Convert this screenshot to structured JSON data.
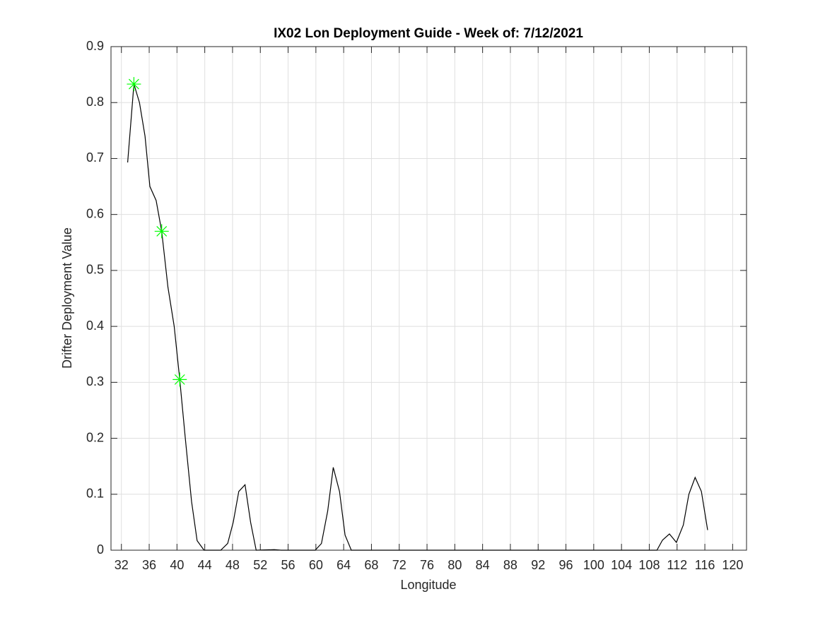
{
  "chart_data": {
    "type": "line",
    "title": "IX02 Lon Deployment Guide - Week of: 7/12/2021",
    "x_label": "Longitude",
    "y_label": "Drifter Deployment Value",
    "x": [
      32.9,
      33.8,
      34.6,
      35.4,
      36.1,
      37.0,
      37.8,
      38.7,
      39.6,
      40.4,
      41.2,
      42.1,
      42.9,
      43.9,
      46.3,
      47.3,
      48.1,
      48.9,
      49.8,
      50.6,
      51.4,
      54.0,
      55.0,
      59.9,
      60.8,
      61.7,
      62.5,
      63.4,
      64.2,
      65.1,
      109.1,
      109.9,
      110.9,
      111.9,
      112.9,
      113.7,
      114.6,
      115.5,
      116.4
    ],
    "values": [
      0.693,
      0.833,
      0.8,
      0.74,
      0.65,
      0.625,
      0.57,
      0.47,
      0.4,
      0.305,
      0.2,
      0.087,
      0.017,
      0,
      0,
      0.012,
      0.05,
      0.105,
      0.117,
      0.05,
      0,
      0.001,
      0,
      0,
      0.012,
      0.07,
      0.148,
      0.105,
      0.027,
      0,
      0,
      0.018,
      0.029,
      0.014,
      0.045,
      0.1,
      0.13,
      0.105,
      0.036
    ],
    "color": "#000000",
    "markers": {
      "x": [
        33.8,
        37.8,
        40.4
      ],
      "values": [
        0.833,
        0.57,
        0.305
      ],
      "color": "#00ff00"
    },
    "xlim": [
      30.5,
      122
    ],
    "ylim": [
      0,
      0.9
    ],
    "xticks": [
      32,
      36,
      40,
      44,
      48,
      52,
      56,
      60,
      64,
      68,
      72,
      76,
      80,
      84,
      88,
      92,
      96,
      100,
      104,
      108,
      112,
      116,
      120
    ],
    "yticks": [
      0,
      0.1,
      0.2,
      0.3,
      0.4,
      0.5,
      0.6,
      0.7,
      0.8,
      0.9
    ],
    "grid": true
  }
}
